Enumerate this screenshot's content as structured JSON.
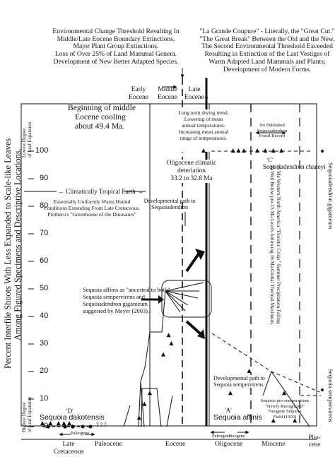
{
  "header": {
    "left_note": [
      "Environmental Change Threshold Resulting In",
      "Middle/Late Eocene Boundary Extinctions.",
      "Major Plant Group Extinctions.",
      "Loss of Over 25% of Land Mammal Genera.",
      "Development of New Better Adapted Species."
    ],
    "right_note": [
      "\"La Grande Coupure\" - Literally, the \"Great Cut.\"",
      "\"The Great Break\" Between the Old and the New.",
      "The Second Environmental Threshold Exceeded",
      "Resulting in Extinction of the Last Vestiges of",
      "Warm Adapted Land Mammals and Plants;",
      "Development of Modern Forms."
    ]
  },
  "epoch_top": {
    "early": [
      "Early",
      "Eocene"
    ],
    "middle": [
      "Middle",
      "Eocene"
    ],
    "late": [
      "Late",
      "Eocene"
    ]
  },
  "y_axis": {
    "title": [
      "Percent Interfile Shoots With Less Expanded to Scale-like Leaves",
      "Among Figured Specimens and Descriptive Locations."
    ],
    "top_label": [
      "Lowest Degree",
      "of Leaf Expansion"
    ],
    "bottom_label": [
      "Highest Degree",
      "of Leaf Expansion"
    ],
    "ticks": [
      "100",
      "90",
      "80",
      "70",
      "60",
      "50",
      "40",
      "30",
      "20",
      "10",
      "0"
    ]
  },
  "x_axis": {
    "labels": [
      "Late",
      "Cretaceous",
      "Paleocene",
      "Eocene",
      "Oligocene",
      "Miocene",
      "Plio-",
      "cene"
    ],
    "small_paleogene_1": "Paleogene",
    "small_paleogene_2": "Paleogene",
    "small_neogene": "Neogene"
  },
  "annotations": {
    "cooling": [
      "Beginning of middle",
      "Eocene cooling",
      "about 49.4 Ma."
    ],
    "drying": [
      "Long term drying trend.",
      "Lowering of mean",
      "annual temperatures.",
      "Increasing mean annual",
      "range of temperatures."
    ],
    "no_record": [
      "No Published",
      "Sequoiadendron",
      "Fossil Record"
    ],
    "oligocene": [
      "Oligocene climatic",
      "deteriation",
      "33.2 to 32.8 Ma"
    ],
    "tropical": "← Climatically Tropical Earth →",
    "warm": [
      "Essentially Uniformly Warm Humid",
      "Conditions Extending From Late Cretaceous.",
      "Prothero's \"Greenhouse of the Dinosaurs\""
    ],
    "dev_sequoiadendron": [
      "Developmental path to",
      "Sequoiadendron"
    ],
    "ancestral": [
      "Sequoia affinis as \"ancestral to both\"",
      "Sequoia sempervirens and",
      "Sequoiadendron giganteum",
      "suggested by Meyer (2003)."
    ],
    "dev_sempervirens": [
      "Developmental path to",
      "Sequoia sempervirens."
    ],
    "pre_sempervirens": [
      "Sequoia pre-sempervirens",
      "\"Newly Recognized\"",
      "Neogene Sequoia",
      "Field (1993)"
    ],
    "crisis": [
      "15 Ma Western North America \"Floristic Crisis\" Summer Precipitation Falling",
      "To Well Below pre-15 Ma Levels following 16 Ma Global Thermal Maximum."
    ],
    "label_c": "'C'",
    "chaneyi": "Sequoiadendron chaneyi",
    "label_d": "'D'",
    "dakotensis": "Sequoia dakotensis",
    "question_marks": "? ? ?",
    "label_a": "'A'",
    "affinis": "Sequoia affinis",
    "giganteum_right": "Sequoiadendron giganteum",
    "sempervirens_right": "Sequoia sempervirens"
  },
  "series": [
    {
      "name": "Sequoia dakotensis",
      "points": [
        [
          0.0,
          1
        ],
        [
          0.03,
          1
        ],
        [
          0.06,
          1
        ],
        [
          0.08,
          1
        ],
        [
          0.1,
          1
        ]
      ]
    },
    {
      "name": "Sequoia affinis",
      "points": [
        [
          0.36,
          3
        ],
        [
          0.38,
          8
        ],
        [
          0.4,
          12
        ],
        [
          0.45,
          26
        ],
        [
          0.47,
          33
        ],
        [
          0.48,
          30
        ]
      ]
    },
    {
      "name": "Sequoiadendron chaneyi",
      "points": [
        [
          0.6,
          100
        ],
        [
          0.71,
          100
        ],
        [
          0.73,
          100
        ],
        [
          0.75,
          100
        ],
        [
          0.8,
          100
        ],
        [
          0.83,
          100
        ],
        [
          0.86,
          100
        ],
        [
          0.89,
          100
        ]
      ]
    },
    {
      "name": "Sequoia sempervirens",
      "points": [
        [
          0.7,
          12
        ],
        [
          0.77,
          20
        ],
        [
          0.86,
          2
        ],
        [
          0.9,
          12
        ],
        [
          0.94,
          2
        ]
      ]
    }
  ]
}
